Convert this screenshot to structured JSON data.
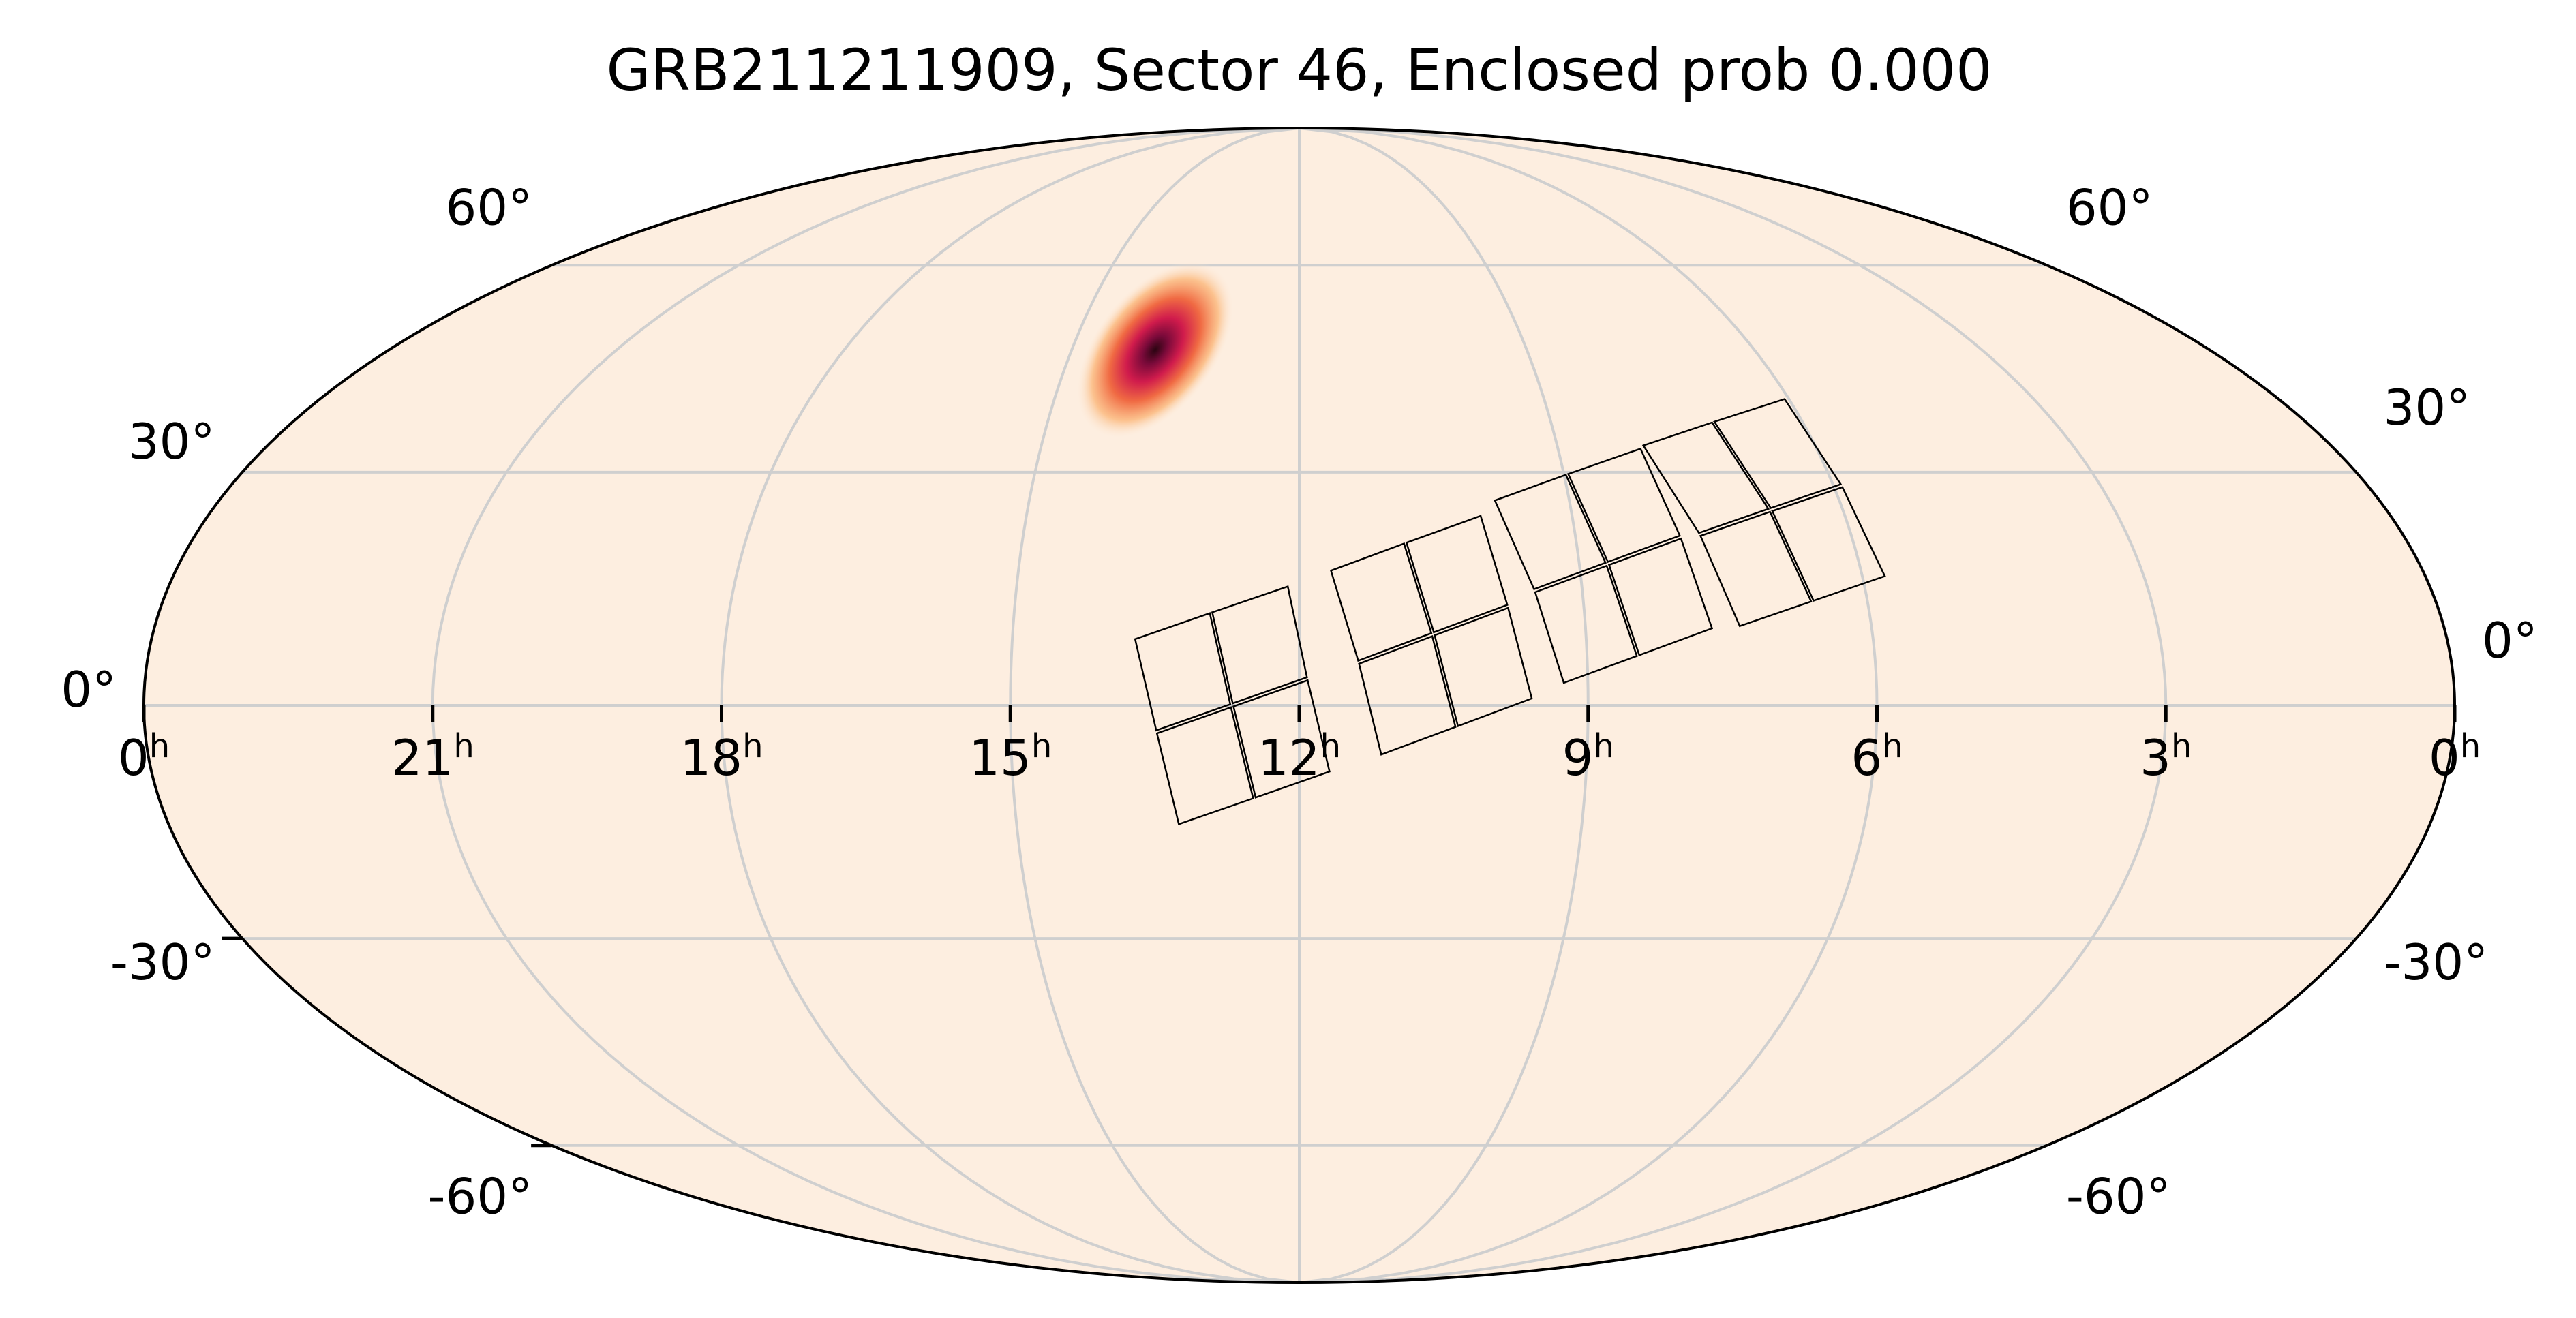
{
  "chart_data": {
    "type": "sky-map",
    "projection": "mollweide",
    "title": "GRB211211909, Sector 46, Enclosed prob 0.000",
    "background_color": "#fdeee0",
    "grid": true,
    "grid_color": "#cfcfcf",
    "ra_ticks": [
      {
        "value_h": 24,
        "main": "0",
        "sup": "h"
      },
      {
        "value_h": 21,
        "main": "21",
        "sup": "h"
      },
      {
        "value_h": 18,
        "main": "18",
        "sup": "h"
      },
      {
        "value_h": 15,
        "main": "15",
        "sup": "h"
      },
      {
        "value_h": 12,
        "main": "12",
        "sup": "h"
      },
      {
        "value_h": 9,
        "main": "9",
        "sup": "h"
      },
      {
        "value_h": 6,
        "main": "6",
        "sup": "h"
      },
      {
        "value_h": 3,
        "main": "3",
        "sup": "h"
      },
      {
        "value_h": 0,
        "main": "0",
        "sup": "h"
      }
    ],
    "dec_ticks": [
      {
        "value_deg": 60,
        "label": "60°"
      },
      {
        "value_deg": 30,
        "label": "30°"
      },
      {
        "value_deg": 0,
        "label": "0°"
      },
      {
        "value_deg": -30,
        "label": "-30°"
      },
      {
        "value_deg": -60,
        "label": "-60°"
      }
    ],
    "probability_blob": {
      "ra_h": 13.9,
      "dec_deg": 47,
      "colormap": [
        "#fdeee0",
        "#fbb77a",
        "#f06a43",
        "#d01b4c",
        "#7a0a3a",
        "#2a0411"
      ]
    },
    "footprint": {
      "ccds_per_camera": 4,
      "cameras": [
        {
          "center_ra_h": 12.7,
          "center_dec_deg": 0
        },
        {
          "center_ra_h": 10.6,
          "center_dec_deg": 9
        },
        {
          "center_ra_h": 8.7,
          "center_dec_deg": 18
        },
        {
          "center_ra_h": 6.8,
          "center_dec_deg": 25
        }
      ]
    }
  }
}
